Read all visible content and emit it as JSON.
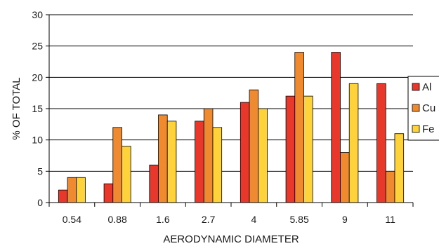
{
  "chart_data": {
    "type": "bar",
    "title": "",
    "xlabel": "AERODYNAMIC DIAMETER",
    "ylabel": "% OF TOTAL",
    "ylim": [
      0,
      30
    ],
    "yticks": [
      0,
      5,
      10,
      15,
      20,
      25,
      30
    ],
    "grid": true,
    "legend_position": "right",
    "categories": [
      "0.54",
      "0.88",
      "1.6",
      "2.7",
      "4",
      "5.85",
      "9",
      "11"
    ],
    "series": [
      {
        "name": "Al",
        "color": "#e8382b",
        "values": [
          2,
          3,
          6,
          13,
          16,
          17,
          24,
          19
        ]
      },
      {
        "name": "Cu",
        "color": "#f08a30",
        "values": [
          4,
          12,
          14,
          15,
          18,
          24,
          8,
          5
        ]
      },
      {
        "name": "Fe",
        "color": "#fdd23a",
        "values": [
          4,
          9,
          13,
          12,
          15,
          17,
          19,
          11
        ]
      }
    ]
  }
}
